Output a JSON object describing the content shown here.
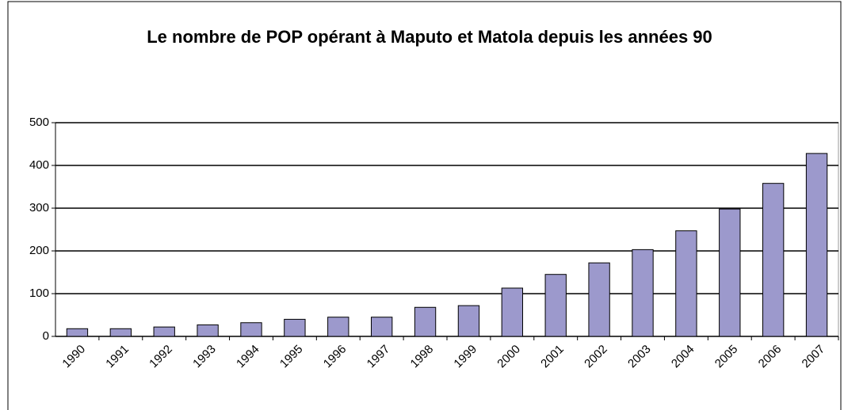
{
  "chart_data": {
    "type": "bar",
    "title": "Le nombre de POP opérant à Maputo et Matola depuis les années 90",
    "categories": [
      "1990",
      "1991",
      "1992",
      "1993",
      "1994",
      "1995",
      "1996",
      "1997",
      "1998",
      "1999",
      "2000",
      "2001",
      "2002",
      "2003",
      "2004",
      "2005",
      "2006",
      "2007"
    ],
    "values": [
      18,
      18,
      22,
      27,
      32,
      40,
      45,
      45,
      68,
      72,
      113,
      145,
      172,
      203,
      247,
      298,
      358,
      428
    ],
    "color": "#9c99cc",
    "ylim": [
      0,
      500
    ],
    "yticks": [
      0,
      100,
      200,
      300,
      400,
      500
    ],
    "grid": true
  }
}
